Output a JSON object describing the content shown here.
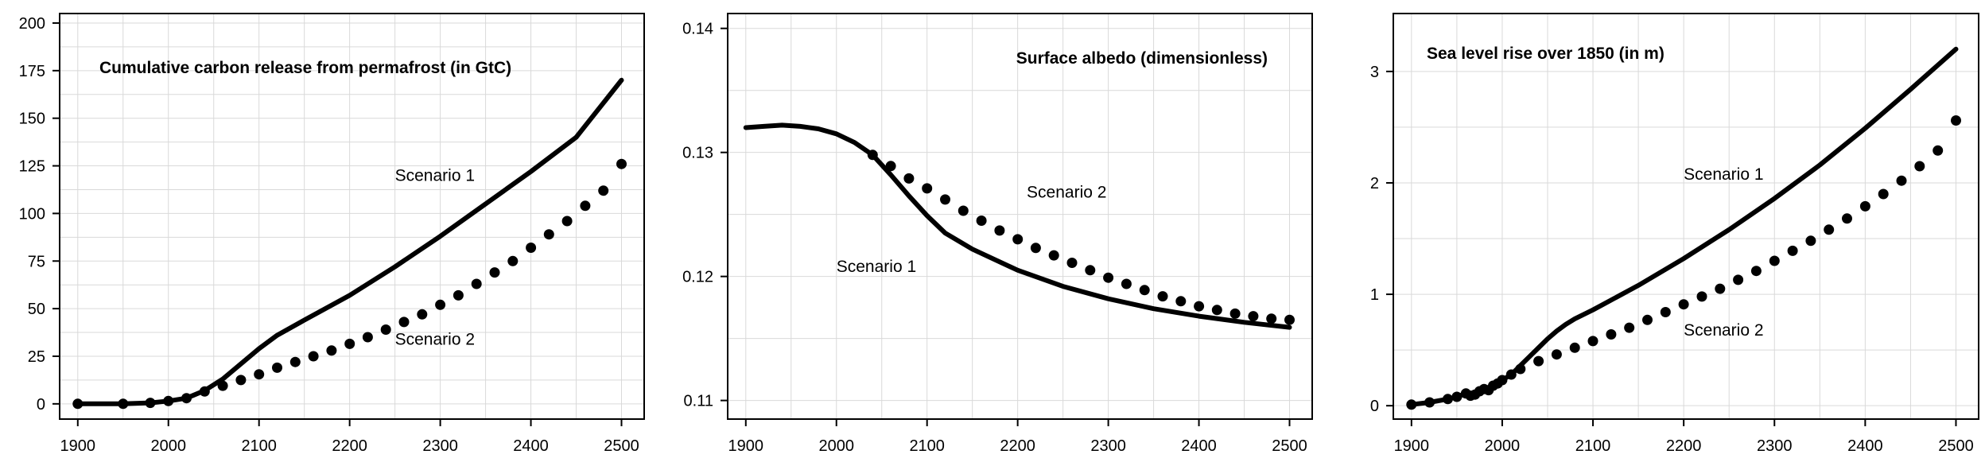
{
  "colors": {
    "ink": "#000000",
    "grid": "#d9d9d9",
    "background": "#ffffff"
  },
  "chart_data": [
    {
      "type": "line",
      "title": "Cumulative carbon release from permafrost (in GtC)",
      "xlabel": "",
      "ylabel": "",
      "xlim": [
        1880,
        2525
      ],
      "ylim": [
        -8,
        205
      ],
      "xticks": [
        1900,
        2000,
        2100,
        2200,
        2300,
        2400,
        2500
      ],
      "yticks": [
        0,
        25,
        50,
        75,
        100,
        125,
        150,
        175,
        200
      ],
      "grid": true,
      "series": [
        {
          "name": "Scenario 1",
          "style": "solid",
          "x": [
            1900,
            1950,
            1980,
            2000,
            2020,
            2040,
            2060,
            2080,
            2100,
            2120,
            2150,
            2200,
            2250,
            2300,
            2350,
            2400,
            2450,
            2500
          ],
          "y": [
            0,
            0,
            0.5,
            1.5,
            3,
            7,
            13,
            21,
            29,
            36,
            44,
            57,
            72,
            88,
            105,
            122,
            140,
            170
          ]
        },
        {
          "name": "Scenario 2",
          "style": "dotted",
          "x": [
            1900,
            1950,
            1980,
            2000,
            2020,
            2040,
            2060,
            2080,
            2100,
            2120,
            2140,
            2160,
            2180,
            2200,
            2220,
            2240,
            2260,
            2280,
            2300,
            2320,
            2340,
            2360,
            2380,
            2400,
            2420,
            2440,
            2460,
            2480,
            2500
          ],
          "y": [
            0,
            0,
            0.5,
            1.5,
            3,
            6.5,
            9.5,
            12.5,
            15.5,
            19,
            22,
            25,
            28,
            31.5,
            35,
            39,
            43,
            47,
            52,
            57,
            63,
            69,
            75,
            82,
            89,
            96,
            104,
            112,
            126
          ]
        }
      ],
      "labels": [
        {
          "text": "Scenario 1",
          "x": 2250,
          "y": 120
        },
        {
          "text": "Scenario 2",
          "x": 2250,
          "y": 34
        }
      ]
    },
    {
      "type": "line",
      "title": "Surface albedo (dimensionless)",
      "xlabel": "",
      "ylabel": "",
      "xlim": [
        1880,
        2525
      ],
      "ylim": [
        0.1085,
        0.1412
      ],
      "xticks": [
        1900,
        2000,
        2100,
        2200,
        2300,
        2400,
        2500
      ],
      "yticks": [
        0.11,
        0.12,
        0.13,
        0.14
      ],
      "grid": true,
      "series": [
        {
          "name": "Scenario 1",
          "style": "solid",
          "x": [
            1900,
            1920,
            1940,
            1960,
            1980,
            2000,
            2020,
            2040,
            2060,
            2080,
            2100,
            2120,
            2150,
            2200,
            2250,
            2300,
            2350,
            2400,
            2450,
            2500
          ],
          "y": [
            0.132,
            0.1321,
            0.1322,
            0.1321,
            0.1319,
            0.1315,
            0.1308,
            0.1298,
            0.1282,
            0.1265,
            0.1249,
            0.1235,
            0.1222,
            0.1205,
            0.1192,
            0.1182,
            0.1174,
            0.1168,
            0.1163,
            0.1159
          ]
        },
        {
          "name": "Scenario 2",
          "style": "dotted",
          "x": [
            2040,
            2060,
            2080,
            2100,
            2120,
            2140,
            2160,
            2180,
            2200,
            2220,
            2240,
            2260,
            2280,
            2300,
            2320,
            2340,
            2360,
            2380,
            2400,
            2420,
            2440,
            2460,
            2480,
            2500
          ],
          "y": [
            0.1298,
            0.1289,
            0.1279,
            0.1271,
            0.1262,
            0.1253,
            0.1245,
            0.1237,
            0.123,
            0.1223,
            0.1217,
            0.1211,
            0.1205,
            0.1199,
            0.1194,
            0.1189,
            0.1184,
            0.118,
            0.1176,
            0.1173,
            0.117,
            0.1168,
            0.1166,
            0.1165
          ]
        }
      ],
      "labels": [
        {
          "text": "Scenario 2",
          "x": 2210,
          "y": 0.1268
        },
        {
          "text": "Scenario 1",
          "x": 2000,
          "y": 0.1208
        }
      ]
    },
    {
      "type": "line",
      "title": "Sea level rise over 1850 (in m)",
      "xlabel": "",
      "ylabel": "",
      "xlim": [
        1880,
        2525
      ],
      "ylim": [
        -0.12,
        3.52
      ],
      "xticks": [
        1900,
        2000,
        2100,
        2200,
        2300,
        2400,
        2500
      ],
      "yticks": [
        0,
        1,
        2,
        3
      ],
      "grid": true,
      "series": [
        {
          "name": "Scenario 1",
          "style": "solid",
          "x": [
            1900,
            1920,
            1940,
            1950,
            1960,
            1965,
            1970,
            1975,
            1980,
            1985,
            1990,
            1995,
            2000,
            2010,
            2020,
            2030,
            2040,
            2050,
            2060,
            2070,
            2080,
            2090,
            2100,
            2150,
            2200,
            2250,
            2300,
            2350,
            2400,
            2450,
            2500
          ],
          "y": [
            0.01,
            0.03,
            0.06,
            0.08,
            0.11,
            0.09,
            0.1,
            0.13,
            0.15,
            0.14,
            0.18,
            0.2,
            0.23,
            0.28,
            0.36,
            0.44,
            0.52,
            0.6,
            0.67,
            0.73,
            0.78,
            0.82,
            0.86,
            1.08,
            1.32,
            1.58,
            1.86,
            2.16,
            2.49,
            2.84,
            3.2
          ]
        },
        {
          "name": "Scenario 2",
          "style": "dotted",
          "x": [
            1900,
            1920,
            1940,
            1950,
            1960,
            1965,
            1970,
            1975,
            1980,
            1985,
            1990,
            1995,
            2000,
            2010,
            2020,
            2040,
            2060,
            2080,
            2100,
            2120,
            2140,
            2160,
            2180,
            2200,
            2220,
            2240,
            2260,
            2280,
            2300,
            2320,
            2340,
            2360,
            2380,
            2400,
            2420,
            2440,
            2460,
            2480,
            2500
          ],
          "y": [
            0.01,
            0.03,
            0.06,
            0.08,
            0.11,
            0.09,
            0.1,
            0.13,
            0.15,
            0.14,
            0.18,
            0.2,
            0.23,
            0.28,
            0.33,
            0.4,
            0.46,
            0.52,
            0.58,
            0.64,
            0.7,
            0.77,
            0.84,
            0.91,
            0.98,
            1.05,
            1.13,
            1.21,
            1.3,
            1.39,
            1.48,
            1.58,
            1.68,
            1.79,
            1.9,
            2.02,
            2.15,
            2.29,
            2.56
          ]
        }
      ],
      "labels": [
        {
          "text": "Scenario 1",
          "x": 2200,
          "y": 2.08
        },
        {
          "text": "Scenario 2",
          "x": 2200,
          "y": 0.68
        }
      ]
    }
  ]
}
